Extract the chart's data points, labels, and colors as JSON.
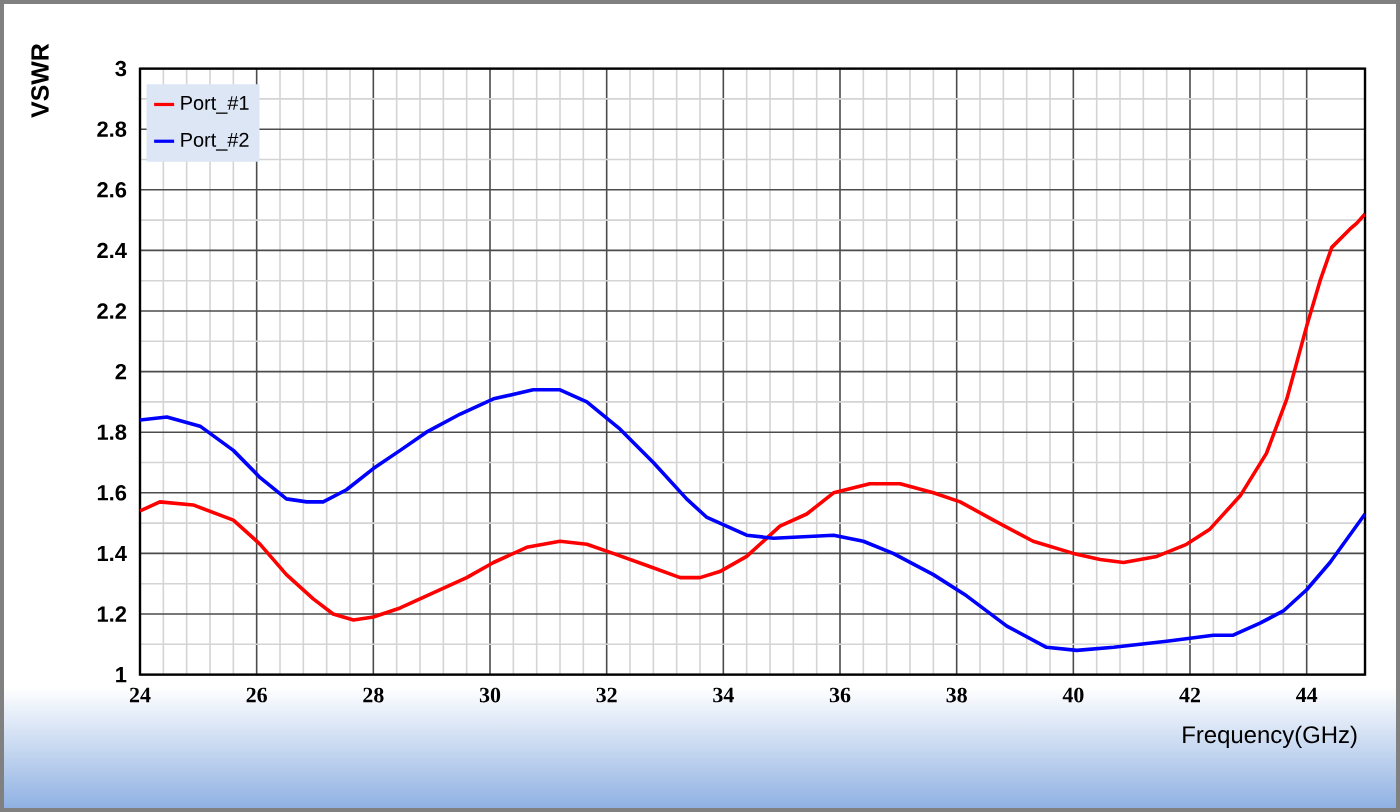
{
  "chart_data": {
    "type": "line",
    "xlabel": "Frequency(GHz)",
    "ylabel": "VSWR",
    "xlim": [
      24,
      45
    ],
    "ylim": [
      1,
      3
    ],
    "xticks": [
      24,
      26,
      28,
      30,
      32,
      34,
      36,
      38,
      40,
      42,
      44
    ],
    "yticks": [
      1,
      1.2,
      1.4,
      1.6,
      1.8,
      2,
      2.2,
      2.4,
      2.6,
      2.8,
      3
    ],
    "grid": true,
    "legend": "top left",
    "line_style": "solid",
    "series": [
      {
        "name": "Port_#1",
        "color": "#ff0000",
        "x": [
          24,
          24.34,
          24.91,
          25.6,
          26.06,
          26.51,
          26.97,
          27.31,
          27.66,
          28.0,
          28.46,
          29.03,
          29.6,
          30.06,
          30.63,
          31.2,
          31.66,
          32.11,
          32.69,
          33.26,
          33.6,
          33.94,
          34.4,
          34.97,
          35.43,
          35.89,
          36.51,
          37.03,
          37.6,
          38.06,
          38.63,
          39.31,
          40.0,
          40.46,
          40.86,
          41.43,
          41.94,
          42.34,
          42.86,
          43.31,
          43.66,
          44.0,
          44.23,
          44.43,
          44.74,
          44.86,
          45
        ],
        "values": [
          1.54,
          1.57,
          1.56,
          1.51,
          1.43,
          1.33,
          1.25,
          1.2,
          1.18,
          1.19,
          1.22,
          1.27,
          1.32,
          1.37,
          1.42,
          1.44,
          1.43,
          1.4,
          1.36,
          1.32,
          1.32,
          1.34,
          1.39,
          1.49,
          1.53,
          1.6,
          1.63,
          1.63,
          1.6,
          1.57,
          1.51,
          1.44,
          1.4,
          1.38,
          1.37,
          1.39,
          1.43,
          1.48,
          1.59,
          1.73,
          1.91,
          2.15,
          2.3,
          2.41,
          2.47,
          2.49,
          2.52
        ]
      },
      {
        "name": "Port_#2",
        "color": "#0000ff",
        "x": [
          24,
          24.46,
          25.03,
          25.6,
          26.06,
          26.51,
          26.86,
          27.14,
          27.54,
          28.0,
          28.46,
          28.91,
          29.49,
          30.06,
          30.74,
          31.2,
          31.66,
          32.23,
          32.8,
          33.37,
          33.71,
          34.4,
          34.86,
          35.89,
          36.4,
          36.91,
          37.6,
          38.17,
          38.86,
          39.54,
          40.06,
          40.69,
          41.6,
          42.4,
          42.74,
          43.2,
          43.6,
          44.0,
          44.4,
          45
        ],
        "values": [
          1.84,
          1.85,
          1.82,
          1.74,
          1.65,
          1.58,
          1.57,
          1.57,
          1.61,
          1.68,
          1.74,
          1.8,
          1.86,
          1.91,
          1.94,
          1.94,
          1.9,
          1.81,
          1.7,
          1.58,
          1.52,
          1.46,
          1.45,
          1.46,
          1.44,
          1.4,
          1.33,
          1.26,
          1.16,
          1.09,
          1.08,
          1.09,
          1.11,
          1.13,
          1.13,
          1.17,
          1.21,
          1.28,
          1.37,
          1.53
        ]
      }
    ]
  }
}
